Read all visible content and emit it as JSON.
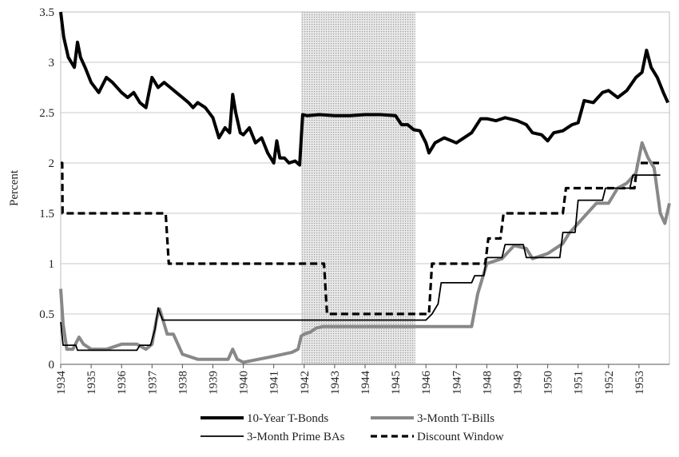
{
  "chart_data": {
    "type": "line",
    "ylabel": "Percent",
    "xlabel": "",
    "xlim": [
      1934.0,
      1954.0
    ],
    "ylim": [
      0,
      3.5
    ],
    "yticks": [
      0,
      0.5,
      1,
      1.5,
      2,
      2.5,
      3,
      3.5
    ],
    "ytick_labels": [
      "0",
      "0.5",
      "1",
      "1.5",
      "2",
      "2.5",
      "3",
      "3.5"
    ],
    "xticks": [
      1934,
      1935,
      1936,
      1937,
      1938,
      1939,
      1940,
      1941,
      1942,
      1943,
      1944,
      1945,
      1946,
      1947,
      1948,
      1949,
      1950,
      1951,
      1952,
      1953
    ],
    "xtick_labels": [
      "1934",
      "1935",
      "1936",
      "1937",
      "1938",
      "1939",
      "1940",
      "1941",
      "1942",
      "1943",
      "1944",
      "1945",
      "1946",
      "1947",
      "1948",
      "1949",
      "1950",
      "1951",
      "1952",
      "1953"
    ],
    "shaded_region": [
      1941.9,
      1945.65
    ],
    "grid": "horizontal",
    "legend_position": "bottom",
    "series": [
      {
        "name": "10-Year T-Bonds",
        "style": "thick-solid",
        "color": "#000000",
        "x": [
          1934.0,
          1934.1,
          1934.25,
          1934.45,
          1934.55,
          1934.65,
          1934.8,
          1935.0,
          1935.25,
          1935.5,
          1935.7,
          1936.0,
          1936.2,
          1936.4,
          1936.6,
          1936.8,
          1937.0,
          1937.2,
          1937.4,
          1937.6,
          1937.8,
          1938.0,
          1938.2,
          1938.35,
          1938.5,
          1938.75,
          1939.0,
          1939.2,
          1939.4,
          1939.55,
          1939.65,
          1939.75,
          1939.9,
          1940.0,
          1940.2,
          1940.4,
          1940.6,
          1940.8,
          1941.0,
          1941.1,
          1941.2,
          1941.35,
          1941.5,
          1941.7,
          1941.85,
          1941.95,
          1942.1,
          1942.5,
          1943.0,
          1943.5,
          1944.0,
          1944.5,
          1945.0,
          1945.2,
          1945.4,
          1945.6,
          1945.8,
          1946.0,
          1946.1,
          1946.3,
          1946.6,
          1947.0,
          1947.5,
          1947.8,
          1948.0,
          1948.3,
          1948.6,
          1949.0,
          1949.3,
          1949.5,
          1949.8,
          1950.0,
          1950.2,
          1950.5,
          1950.8,
          1951.0,
          1951.2,
          1951.5,
          1951.8,
          1952.0,
          1952.3,
          1952.6,
          1952.9,
          1953.1,
          1953.25,
          1953.4,
          1953.6,
          1953.8,
          1953.95
        ],
        "y": [
          3.5,
          3.25,
          3.05,
          2.95,
          3.2,
          3.05,
          2.95,
          2.8,
          2.7,
          2.85,
          2.8,
          2.7,
          2.65,
          2.7,
          2.6,
          2.55,
          2.85,
          2.75,
          2.8,
          2.75,
          2.7,
          2.65,
          2.6,
          2.55,
          2.6,
          2.55,
          2.45,
          2.25,
          2.35,
          2.3,
          2.68,
          2.5,
          2.3,
          2.28,
          2.35,
          2.2,
          2.25,
          2.1,
          2.0,
          2.22,
          2.05,
          2.05,
          2.0,
          2.02,
          1.98,
          2.48,
          2.47,
          2.48,
          2.47,
          2.47,
          2.48,
          2.48,
          2.47,
          2.38,
          2.38,
          2.33,
          2.32,
          2.2,
          2.1,
          2.2,
          2.25,
          2.2,
          2.3,
          2.44,
          2.44,
          2.42,
          2.45,
          2.42,
          2.38,
          2.3,
          2.28,
          2.22,
          2.3,
          2.32,
          2.38,
          2.4,
          2.62,
          2.6,
          2.7,
          2.72,
          2.65,
          2.72,
          2.85,
          2.9,
          3.12,
          2.95,
          2.85,
          2.7,
          2.6
        ]
      },
      {
        "name": "3-Month T-Bills",
        "style": "thick-solid",
        "color": "#888888",
        "x": [
          1934.0,
          1934.08,
          1934.2,
          1934.4,
          1934.6,
          1934.75,
          1935.0,
          1935.5,
          1936.0,
          1936.5,
          1936.8,
          1937.0,
          1937.15,
          1937.25,
          1937.5,
          1937.7,
          1938.0,
          1938.5,
          1939.0,
          1939.5,
          1939.65,
          1939.8,
          1940.0,
          1940.5,
          1941.0,
          1941.3,
          1941.6,
          1941.8,
          1941.9,
          1942.0,
          1942.2,
          1942.4,
          1942.6,
          1943.0,
          1944.0,
          1945.0,
          1946.0,
          1946.5,
          1947.0,
          1947.5,
          1947.7,
          1948.0,
          1948.5,
          1948.9,
          1949.3,
          1949.5,
          1950.0,
          1950.5,
          1950.7,
          1951.0,
          1951.3,
          1951.6,
          1952.0,
          1952.3,
          1952.6,
          1952.9,
          1953.1,
          1953.3,
          1953.5,
          1953.7,
          1953.85,
          1954.0
        ],
        "y": [
          0.75,
          0.4,
          0.15,
          0.15,
          0.27,
          0.2,
          0.15,
          0.15,
          0.2,
          0.2,
          0.15,
          0.2,
          0.45,
          0.55,
          0.3,
          0.3,
          0.1,
          0.05,
          0.05,
          0.05,
          0.15,
          0.05,
          0.02,
          0.05,
          0.08,
          0.1,
          0.12,
          0.15,
          0.28,
          0.3,
          0.32,
          0.36,
          0.375,
          0.375,
          0.375,
          0.375,
          0.375,
          0.375,
          0.375,
          0.375,
          0.7,
          1.0,
          1.05,
          1.18,
          1.15,
          1.05,
          1.1,
          1.2,
          1.3,
          1.4,
          1.5,
          1.6,
          1.6,
          1.75,
          1.8,
          1.9,
          2.2,
          2.05,
          1.95,
          1.5,
          1.4,
          1.6
        ]
      },
      {
        "name": "3-Month Prime BAs",
        "style": "thin-solid",
        "color": "#000000",
        "x": [
          1934.0,
          1934.08,
          1934.5,
          1934.55,
          1936.5,
          1936.6,
          1936.95,
          1937.1,
          1937.2,
          1937.35,
          1946.0,
          1946.2,
          1946.4,
          1946.5,
          1947.0,
          1947.5,
          1947.6,
          1947.9,
          1948.0,
          1948.5,
          1948.6,
          1949.2,
          1949.3,
          1950.4,
          1950.5,
          1950.9,
          1951.0,
          1951.8,
          1951.9,
          1952.7,
          1952.8,
          1953.7
        ],
        "y": [
          0.42,
          0.19,
          0.19,
          0.14,
          0.14,
          0.19,
          0.19,
          0.35,
          0.56,
          0.44,
          0.44,
          0.5,
          0.6,
          0.81,
          0.81,
          0.81,
          0.88,
          0.88,
          1.06,
          1.06,
          1.19,
          1.19,
          1.06,
          1.06,
          1.31,
          1.31,
          1.63,
          1.63,
          1.75,
          1.75,
          1.88,
          1.88
        ]
      },
      {
        "name": "Discount Window",
        "style": "dashed",
        "color": "#000000",
        "x": [
          1934.0,
          1934.05,
          1934.06,
          1937.45,
          1937.55,
          1937.56,
          1942.65,
          1942.75,
          1942.76,
          1946.1,
          1946.2,
          1946.21,
          1947.95,
          1948.05,
          1948.06,
          1948.45,
          1948.55,
          1948.56,
          1950.5,
          1950.6,
          1950.61,
          1952.85,
          1952.95,
          1952.96,
          1953.7
        ],
        "y": [
          2.0,
          2.0,
          1.5,
          1.5,
          1.0,
          1.0,
          1.0,
          0.5,
          0.5,
          0.5,
          1.0,
          1.0,
          1.0,
          1.25,
          1.25,
          1.25,
          1.5,
          1.5,
          1.5,
          1.75,
          1.75,
          1.75,
          2.0,
          2.0,
          2.0
        ]
      }
    ]
  }
}
